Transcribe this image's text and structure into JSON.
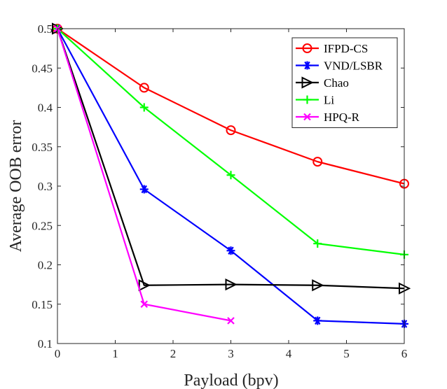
{
  "chart_data": {
    "type": "line",
    "title": "",
    "xlabel": "Payload (bpv)",
    "ylabel": "Average OOB error",
    "xlim": [
      0,
      6
    ],
    "ylim": [
      0.1,
      0.5
    ],
    "xticks": [
      0,
      1,
      2,
      3,
      4,
      5,
      6
    ],
    "yticks": [
      0.1,
      0.15,
      0.2,
      0.25,
      0.3,
      0.35,
      0.4,
      0.45,
      0.5
    ],
    "ytick_labels": [
      "0.1",
      "0.15",
      "0.2",
      "0.25",
      "0.3",
      "0.35",
      "0.4",
      "0.45",
      "0.5"
    ],
    "grid": false,
    "legend_position": "top-right",
    "series": [
      {
        "name": "IFPD-CS",
        "color": "#ff0000",
        "marker": "circle",
        "x": [
          0,
          1.5,
          3,
          4.5,
          6
        ],
        "values": [
          0.5,
          0.425,
          0.371,
          0.331,
          0.303
        ]
      },
      {
        "name": "VND/LSBR",
        "color": "#0000ff",
        "marker": "asterisk",
        "x": [
          0,
          1.5,
          3,
          4.5,
          6
        ],
        "values": [
          0.5,
          0.296,
          0.218,
          0.129,
          0.125
        ]
      },
      {
        "name": "Chao",
        "color": "#000000",
        "marker": "triangle-right",
        "x": [
          0,
          1.5,
          3,
          4.5,
          6
        ],
        "values": [
          0.5,
          0.174,
          0.175,
          0.174,
          0.17
        ]
      },
      {
        "name": "Li",
        "color": "#00ff00",
        "marker": "plus",
        "x": [
          0,
          1.5,
          3,
          4.5,
          6
        ],
        "values": [
          0.5,
          0.4,
          0.314,
          0.227,
          0.213
        ]
      },
      {
        "name": "HPQ-R",
        "color": "#ff00ff",
        "marker": "x",
        "x": [
          0,
          1.5,
          3
        ],
        "values": [
          0.5,
          0.15,
          0.129
        ]
      }
    ]
  }
}
